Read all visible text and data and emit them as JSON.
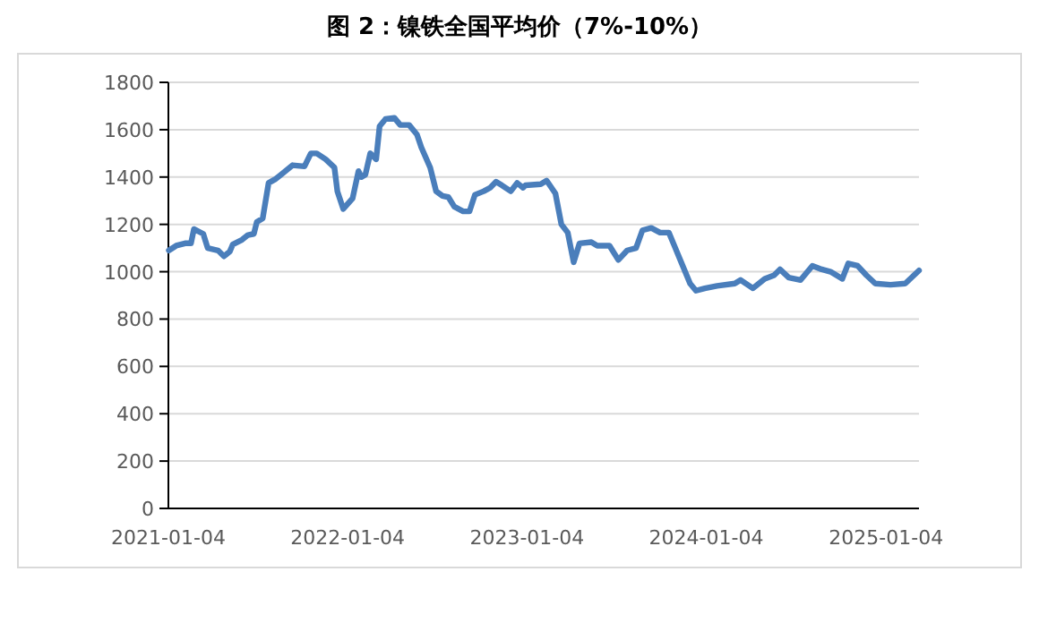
{
  "chart_data": {
    "type": "line",
    "title": "图 2：镍铁全国平均价（7%-10%）",
    "x": [
      "2021-01-05",
      "2021-01-20",
      "2021-02-07",
      "2021-02-19",
      "2021-02-25",
      "2021-03-16",
      "2021-03-25",
      "2021-04-15",
      "2021-04-27",
      "2021-05-09",
      "2021-05-15",
      "2021-06-03",
      "2021-06-15",
      "2021-06-27",
      "2021-07-03",
      "2021-07-15",
      "2021-07-27",
      "2021-08-09",
      "2021-08-21",
      "2021-09-14",
      "2021-10-08",
      "2021-10-21",
      "2021-11-02",
      "2021-11-20",
      "2021-12-08",
      "2021-12-14",
      "2021-12-26",
      "2022-01-14",
      "2022-01-26",
      "2022-02-01",
      "2022-02-09",
      "2022-02-19",
      "2022-03-03",
      "2022-03-10",
      "2022-03-22",
      "2022-04-09",
      "2022-04-21",
      "2022-05-09",
      "2022-05-25",
      "2022-06-03",
      "2022-06-21",
      "2022-07-03",
      "2022-07-16",
      "2022-07-28",
      "2022-08-09",
      "2022-08-27",
      "2022-09-09",
      "2022-09-20",
      "2022-10-08",
      "2022-10-21",
      "2022-11-02",
      "2022-11-14",
      "2022-12-02",
      "2022-12-15",
      "2022-12-27",
      "2023-01-01",
      "2023-02-01",
      "2023-02-13",
      "2023-03-03",
      "2023-03-15",
      "2023-03-28",
      "2023-04-09",
      "2023-04-21",
      "2023-05-15",
      "2023-05-27",
      "2023-06-21",
      "2023-07-09",
      "2023-07-27",
      "2023-08-14",
      "2023-08-27",
      "2023-09-14",
      "2023-10-02",
      "2023-10-20",
      "2023-11-02",
      "2023-11-14",
      "2023-12-02",
      "2023-12-14",
      "2024-01-01",
      "2024-01-26",
      "2024-03-02",
      "2024-03-14",
      "2024-04-08",
      "2024-05-02",
      "2024-05-21",
      "2024-06-02",
      "2024-06-20",
      "2024-07-14",
      "2024-08-07",
      "2024-08-26",
      "2024-09-13",
      "2024-10-07",
      "2024-10-19",
      "2024-11-07",
      "2024-11-25",
      "2024-12-13",
      "2025-01-13",
      "2025-02-12",
      "2025-03-12"
    ],
    "series": [
      {
        "color": "#4a7ebb",
        "values": [
          1090,
          1110,
          1120,
          1120,
          1180,
          1160,
          1100,
          1090,
          1065,
          1085,
          1115,
          1135,
          1155,
          1160,
          1210,
          1225,
          1375,
          1390,
          1410,
          1450,
          1445,
          1500,
          1500,
          1475,
          1440,
          1340,
          1265,
          1310,
          1425,
          1400,
          1410,
          1500,
          1475,
          1615,
          1645,
          1650,
          1620,
          1620,
          1580,
          1525,
          1440,
          1340,
          1320,
          1315,
          1275,
          1255,
          1255,
          1325,
          1340,
          1355,
          1380,
          1365,
          1340,
          1375,
          1355,
          1365,
          1370,
          1385,
          1330,
          1200,
          1165,
          1040,
          1120,
          1125,
          1110,
          1110,
          1050,
          1090,
          1100,
          1175,
          1185,
          1165,
          1165,
          1100,
          1040,
          950,
          920,
          930,
          940,
          950,
          965,
          930,
          970,
          985,
          1010,
          975,
          965,
          1025,
          1010,
          1000,
          970,
          1035,
          1025,
          985,
          950,
          945,
          950,
          1005
        ]
      }
    ],
    "xlim": [
      "2021-01-04",
      "2025-03-12"
    ],
    "xticks": [
      "2021-01-04",
      "2022-01-04",
      "2023-01-04",
      "2024-01-04",
      "2025-01-04"
    ],
    "ylim": [
      0,
      1800
    ],
    "yticks": [
      0,
      200,
      400,
      600,
      800,
      1000,
      1200,
      1400,
      1600,
      1800
    ],
    "grid": "y",
    "marker": "none",
    "line_style": "solid"
  }
}
